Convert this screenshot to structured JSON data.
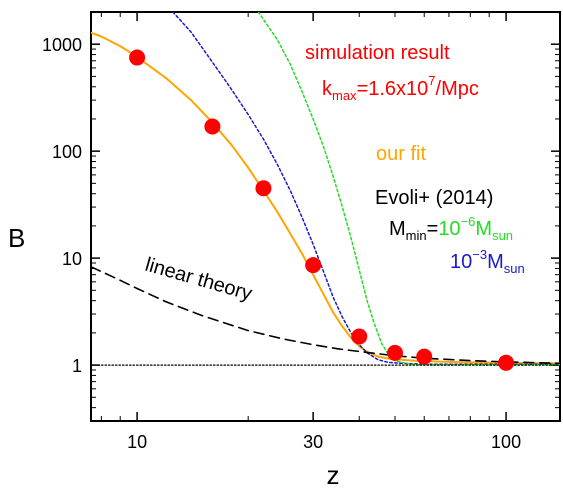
{
  "chart_data": {
    "type": "scatter",
    "title": "",
    "xlabel": "z",
    "ylabel": "B",
    "xscale": "log",
    "yscale": "log",
    "xlim": [
      7.5,
      140
    ],
    "ylim": [
      0.3,
      2000
    ],
    "xticks": [
      10,
      30,
      100
    ],
    "xtick_labels": [
      "10",
      "30",
      "100"
    ],
    "yticks": [
      1,
      10,
      100,
      1000
    ],
    "ytick_labels": [
      "1",
      "10",
      "100",
      "1000"
    ],
    "grid": false,
    "colors": {
      "points": "#ff0000",
      "fit": "#ffa500",
      "evoli_1e-6": "#22dd22",
      "evoli_1e-3": "#1a1acc",
      "linear": "#000000",
      "reference": "#000000"
    },
    "series": [
      {
        "name": "simulation result",
        "style": "points",
        "x": [
          10,
          16,
          22,
          30,
          40,
          50,
          60,
          100
        ],
        "y": [
          750,
          170,
          45,
          8.6,
          1.85,
          1.3,
          1.2,
          1.05
        ]
      },
      {
        "name": "our fit",
        "style": "solid",
        "x": [
          7.5,
          8,
          9,
          10,
          12,
          14,
          16,
          18,
          20,
          22,
          24,
          26,
          28,
          30,
          32,
          34,
          36,
          38,
          40,
          42,
          45,
          48,
          52,
          56,
          60,
          70,
          80,
          100,
          120,
          140
        ],
        "y": [
          1280,
          1180,
          960,
          760,
          480,
          300,
          185,
          115,
          70,
          43,
          27,
          17,
          11,
          7.0,
          4.6,
          3.1,
          2.3,
          1.8,
          1.5,
          1.33,
          1.2,
          1.15,
          1.12,
          1.1,
          1.09,
          1.07,
          1.06,
          1.05,
          1.04,
          1.04
        ]
      },
      {
        "name": "10^-3 M_sun",
        "style": "dotted",
        "x": [
          12.5,
          14,
          16,
          18,
          20,
          22,
          24,
          26,
          28,
          30,
          32,
          34,
          36,
          38,
          40,
          42,
          45,
          48,
          52,
          56,
          60,
          80,
          100,
          140
        ],
        "y": [
          2000,
          1300,
          680,
          380,
          220,
          130,
          75,
          43,
          24,
          13.5,
          7.5,
          4.3,
          2.8,
          2.0,
          1.55,
          1.3,
          1.12,
          1.06,
          1.04,
          1.03,
          1.02,
          1.02,
          1.02,
          1.02
        ]
      },
      {
        "name": "10^-6 M_sun",
        "style": "dotted",
        "x": [
          21.3,
          24,
          26,
          28,
          30,
          32,
          34,
          36,
          38,
          40,
          42,
          44,
          46,
          48,
          50,
          54,
          58,
          60,
          80,
          100,
          140
        ],
        "y": [
          2000,
          1100,
          650,
          360,
          200,
          110,
          58,
          30,
          15.5,
          7.8,
          4.0,
          2.4,
          1.6,
          1.25,
          1.1,
          1.03,
          1.01,
          1.01,
          1.01,
          1.01,
          1.01
        ]
      },
      {
        "name": "linear theory",
        "style": "dashed",
        "x": [
          7.5,
          9,
          10,
          12,
          15,
          20,
          25,
          30,
          35,
          40,
          50,
          60,
          80,
          100,
          140
        ],
        "y": [
          8.3,
          6.2,
          5.2,
          3.9,
          2.9,
          2.1,
          1.75,
          1.55,
          1.42,
          1.34,
          1.22,
          1.16,
          1.1,
          1.07,
          1.04
        ]
      },
      {
        "name": "B = 1",
        "style": "dotted-reference",
        "x": [
          7.5,
          140
        ],
        "y": [
          1,
          1
        ]
      }
    ],
    "annotations": {
      "simulation_result": "simulation result",
      "kmax_prefix": "k",
      "kmax_sub": "max",
      "kmax_eq": "=1.6x10",
      "kmax_exp": "7",
      "kmax_unit": "/Mpc",
      "our_fit": "our fit",
      "evoli": "Evoli+ (2014)",
      "mmin_prefix": "M",
      "mmin_sub": "min",
      "mmin_eq": "=",
      "m1_base": "10",
      "m1_exp": "−6",
      "m1_unit": "M",
      "m1_unit_sub": "sun",
      "m2_base": "10",
      "m2_exp": "−3",
      "m2_unit": "M",
      "m2_unit_sub": "sun",
      "linear_theory": "linear theory"
    }
  }
}
